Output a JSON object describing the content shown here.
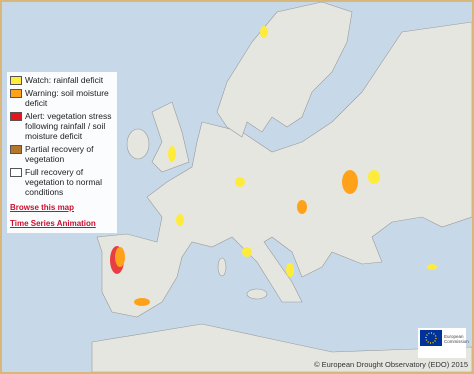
{
  "legend": {
    "items": [
      {
        "label": "Watch: rainfall deficit",
        "color": "#ffeb3b"
      },
      {
        "label": "Warning: soil moisture deficit",
        "color": "#ffa21a"
      },
      {
        "label": "Alert: vegetation stress following rainfall / soil moisture deficit",
        "color": "#e8141b"
      },
      {
        "label": "Partial recovery of vegetation",
        "color": "#b5762c"
      },
      {
        "label": "Full recovery of vegetation to normal conditions",
        "color": "#ffffff"
      }
    ]
  },
  "links": [
    "Browse this map",
    "Time Series Animation"
  ],
  "credit": "© European Drought Observatory (EDO) 2015",
  "logo": "European Commission"
}
